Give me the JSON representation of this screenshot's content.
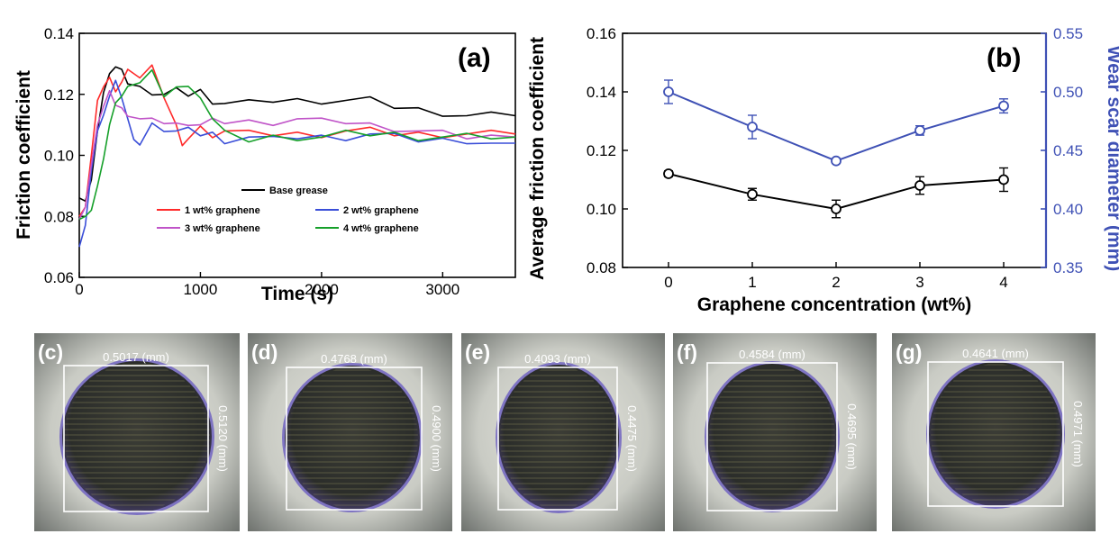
{
  "colors": {
    "base_grease": "#000000",
    "g1": "#ff2a2a",
    "g2": "#3a4ed8",
    "g3": "#c054c8",
    "g4": "#16a02a",
    "friction_series_b": "#000000",
    "wear_series_b": "#3f51b5"
  },
  "chart_data": [
    {
      "panel_label": "(a)",
      "type": "line",
      "xlabel": "Time (s)",
      "ylabel": "Friction coefficient",
      "xlim": [
        0,
        3600
      ],
      "ylim": [
        0.06,
        0.14
      ],
      "xticks": [
        "0",
        "1000",
        "2000",
        "3000"
      ],
      "yticks": [
        "0.06",
        "0.08",
        "0.10",
        "0.12",
        "0.14"
      ],
      "legend_position": "center-bottom",
      "series": [
        {
          "name": "Base grease",
          "color": "#000000",
          "x": [
            0,
            50,
            100,
            150,
            200,
            250,
            300,
            350,
            400,
            500,
            600,
            700,
            800,
            900,
            1000,
            1100,
            1200,
            1400,
            1600,
            1800,
            2000,
            2200,
            2400,
            2600,
            2800,
            3000,
            3200,
            3400,
            3600
          ],
          "y": [
            0.086,
            0.085,
            0.092,
            0.108,
            0.12,
            0.128,
            0.129,
            0.127,
            0.124,
            0.122,
            0.121,
            0.12,
            0.121,
            0.12,
            0.121,
            0.118,
            0.117,
            0.117,
            0.118,
            0.118,
            0.118,
            0.118,
            0.118,
            0.116,
            0.115,
            0.114,
            0.113,
            0.113,
            0.113
          ]
        },
        {
          "name": "1 wt% graphene",
          "color": "#ff2a2a",
          "x": [
            0,
            50,
            100,
            150,
            200,
            250,
            300,
            350,
            400,
            500,
            600,
            700,
            800,
            850,
            900,
            1000,
            1100,
            1200,
            1400,
            1600,
            1800,
            2000,
            2200,
            2400,
            2600,
            2800,
            3000,
            3200,
            3400,
            3600
          ],
          "y": [
            0.08,
            0.083,
            0.1,
            0.118,
            0.123,
            0.125,
            0.122,
            0.124,
            0.127,
            0.126,
            0.129,
            0.12,
            0.11,
            0.102,
            0.106,
            0.109,
            0.107,
            0.108,
            0.107,
            0.107,
            0.107,
            0.107,
            0.108,
            0.108,
            0.107,
            0.107,
            0.107,
            0.107,
            0.107,
            0.107
          ]
        },
        {
          "name": "2 wt% graphene",
          "color": "#3a4ed8",
          "x": [
            0,
            50,
            100,
            150,
            200,
            250,
            300,
            350,
            400,
            450,
            500,
            600,
            700,
            800,
            900,
            1000,
            1100,
            1200,
            1400,
            1600,
            1800,
            2000,
            2200,
            2400,
            2600,
            2800,
            3000,
            3200,
            3400,
            3600
          ],
          "y": [
            0.07,
            0.077,
            0.095,
            0.108,
            0.112,
            0.12,
            0.124,
            0.12,
            0.112,
            0.104,
            0.104,
            0.11,
            0.109,
            0.108,
            0.108,
            0.107,
            0.107,
            0.105,
            0.106,
            0.105,
            0.106,
            0.106,
            0.106,
            0.107,
            0.106,
            0.105,
            0.105,
            0.105,
            0.104,
            0.104
          ]
        },
        {
          "name": "3 wt% graphene",
          "color": "#c054c8",
          "x": [
            0,
            50,
            100,
            150,
            200,
            250,
            300,
            350,
            400,
            500,
            600,
            700,
            800,
            900,
            1000,
            1100,
            1200,
            1400,
            1600,
            1800,
            2000,
            2200,
            2400,
            2600,
            2800,
            3000,
            3200,
            3400,
            3600
          ],
          "y": [
            0.079,
            0.083,
            0.097,
            0.11,
            0.116,
            0.12,
            0.117,
            0.115,
            0.114,
            0.112,
            0.111,
            0.111,
            0.11,
            0.111,
            0.11,
            0.111,
            0.111,
            0.111,
            0.111,
            0.112,
            0.111,
            0.111,
            0.11,
            0.109,
            0.108,
            0.107,
            0.106,
            0.106,
            0.106
          ]
        },
        {
          "name": "4 wt% graphene",
          "color": "#16a02a",
          "x": [
            0,
            50,
            100,
            150,
            200,
            250,
            300,
            350,
            400,
            500,
            600,
            700,
            800,
            900,
            1000,
            1100,
            1200,
            1400,
            1600,
            1800,
            2000,
            2200,
            2400,
            2600,
            2800,
            3000,
            3200,
            3400,
            3600
          ],
          "y": [
            0.079,
            0.08,
            0.082,
            0.09,
            0.1,
            0.11,
            0.116,
            0.12,
            0.122,
            0.125,
            0.128,
            0.118,
            0.123,
            0.122,
            0.12,
            0.112,
            0.107,
            0.105,
            0.106,
            0.106,
            0.106,
            0.107,
            0.107,
            0.107,
            0.106,
            0.106,
            0.106,
            0.106,
            0.106
          ]
        }
      ]
    },
    {
      "panel_label": "(b)",
      "type": "line",
      "xlabel": "Graphene concentration (wt%)",
      "ylabel_left": "Average friction coefficient",
      "ylabel_right": "Wear scar diameter (mm)",
      "x": [
        0,
        1,
        2,
        3,
        4
      ],
      "xticks": [
        "0",
        "1",
        "2",
        "3",
        "4"
      ],
      "ylim_left": [
        0.08,
        0.16
      ],
      "yticks_left": [
        "0.08",
        "0.10",
        "0.12",
        "0.14",
        "0.16"
      ],
      "ylim_right": [
        0.35,
        0.55
      ],
      "yticks_right": [
        "0.35",
        "0.40",
        "0.45",
        "0.50",
        "0.55"
      ],
      "series": [
        {
          "axis": "left",
          "color": "#000000",
          "values": [
            0.112,
            0.105,
            0.1,
            0.108,
            0.11
          ],
          "error": [
            0.001,
            0.002,
            0.003,
            0.003,
            0.004
          ]
        },
        {
          "axis": "right",
          "color": "#3f51b5",
          "values": [
            0.5,
            0.47,
            0.441,
            0.467,
            0.488
          ],
          "error": [
            0.01,
            0.01,
            0.002,
            0.004,
            0.006
          ]
        }
      ]
    }
  ],
  "images": [
    {
      "label": "(c)",
      "horizontal": "0.5017 (mm)",
      "vertical": "0.5120 (mm)"
    },
    {
      "label": "(d)",
      "horizontal": "0.4768 (mm)",
      "vertical": "0.4900 (mm)"
    },
    {
      "label": "(e)",
      "horizontal": "0.4093 (mm)",
      "vertical": "0.4475 (mm)"
    },
    {
      "label": "(f)",
      "horizontal": "0.4584 (mm)",
      "vertical": "0.4695 (mm)"
    },
    {
      "label": "(g)",
      "horizontal": "0.4641 (mm)",
      "vertical": "0.4971 (mm)"
    }
  ]
}
